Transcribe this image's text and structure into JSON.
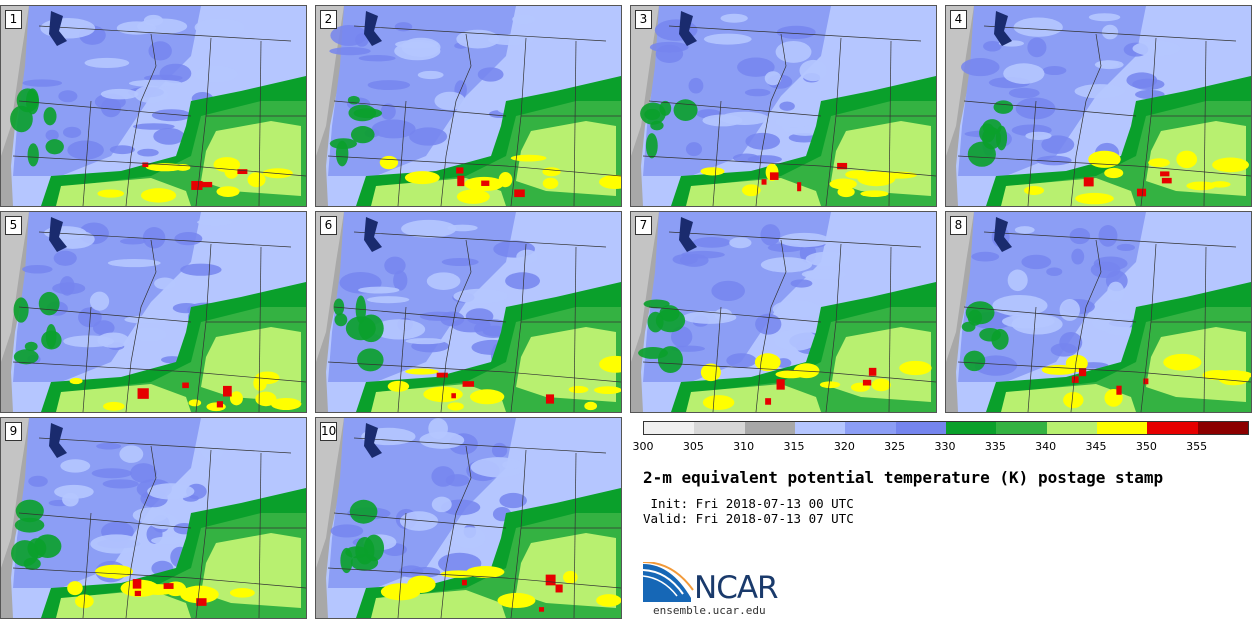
{
  "panels": [
    {
      "label": "1",
      "seed": 11
    },
    {
      "label": "2",
      "seed": 22
    },
    {
      "label": "3",
      "seed": 33
    },
    {
      "label": "4",
      "seed": 44
    },
    {
      "label": "5",
      "seed": 55
    },
    {
      "label": "6",
      "seed": 66
    },
    {
      "label": "7",
      "seed": 77
    },
    {
      "label": "8",
      "seed": 88
    },
    {
      "label": "9",
      "seed": 99
    },
    {
      "label": "10",
      "seed": 111
    }
  ],
  "colorbar": {
    "colors": [
      "#f0f0f0",
      "#d7d7d7",
      "#a8a8a8",
      "#b5c6ff",
      "#8c9ef5",
      "#7585ee",
      "#0aa02b",
      "#34b242",
      "#b8f070",
      "#ffff00",
      "#e60000",
      "#8c0000"
    ],
    "ticks": [
      "300",
      "305",
      "310",
      "315",
      "320",
      "325",
      "330",
      "335",
      "340",
      "345",
      "350",
      "355"
    ]
  },
  "title": "2-m equivalent potential temperature (K) postage stamp",
  "init": " Init: Fri 2018-07-13 00 UTC",
  "valid": "Valid: Fri 2018-07-13 07 UTC",
  "logo": {
    "text": "NCAR",
    "url": "ensemble.ucar.edu"
  }
}
